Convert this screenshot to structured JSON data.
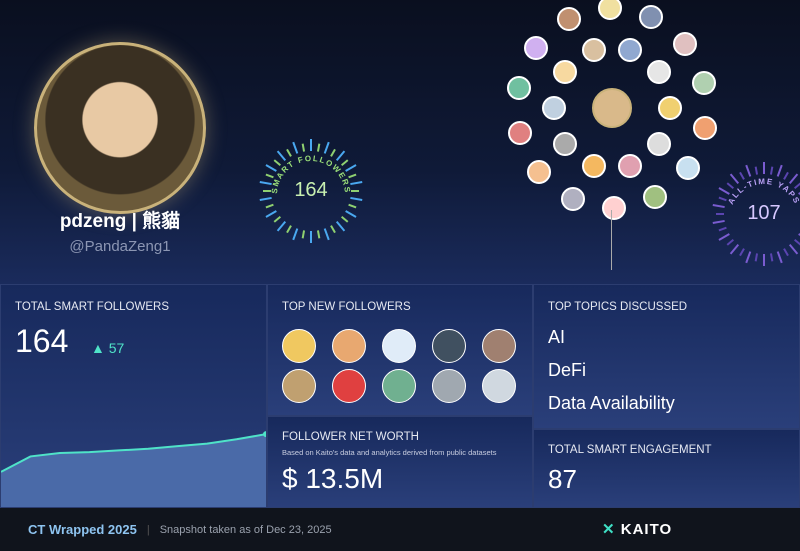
{
  "profile": {
    "name": "pdzeng | 熊貓",
    "handle": "@PandaZeng1"
  },
  "badges": {
    "smart_followers": {
      "label": "SMART FOLLOWERS",
      "value": "164",
      "color": "#9be07a"
    },
    "yaps": {
      "label": "ALL-TIME YAPS",
      "value": "107",
      "color": "#b9a0f5"
    }
  },
  "network_colors": [
    "#f0d070",
    "#ddd",
    "#e0a0b0",
    "#f4b860",
    "#aaa",
    "#c0d0e0",
    "#f7d9a0",
    "#d9c0a0",
    "#90a8d0",
    "#e6e6e6",
    "#f0a070",
    "#c8e0f0",
    "#a0c080",
    "#ffd0d0",
    "#b0b0c0",
    "#f5c090",
    "#e08080",
    "#70c0a0",
    "#d0b0f0",
    "#c09070",
    "#f0e0a0",
    "#8090b0",
    "#e0c0c0",
    "#b0d0b0"
  ],
  "smart_followers": {
    "title": "TOTAL SMART FOLLOWERS",
    "value": "164",
    "delta": "▲ 57",
    "trend": [
      120,
      138,
      142,
      143,
      145,
      147,
      150,
      153,
      158,
      164
    ]
  },
  "new_followers": {
    "title": "TOP NEW FOLLOWERS",
    "colors": [
      "#f0c860",
      "#e8a870",
      "#e0ecf8",
      "#405060",
      "#a08070",
      "#c0a070",
      "#e04040",
      "#70b090",
      "#a0a8b0",
      "#d0d8e0"
    ]
  },
  "net_worth": {
    "title": "FOLLOWER NET WORTH",
    "subtitle": "Based on Kaito's data and analytics derived from public datasets",
    "value": "$ 13.5M"
  },
  "topics": {
    "title": "TOP TOPICS DISCUSSED",
    "items": [
      "AI",
      "DeFi",
      "Data Availability"
    ]
  },
  "engagement": {
    "title": "TOTAL SMART ENGAGEMENT",
    "value": "87"
  },
  "footer": {
    "title": "CT Wrapped 2025",
    "snapshot": "Snapshot taken as of Dec 23, 2025",
    "brand": "KAITO"
  }
}
